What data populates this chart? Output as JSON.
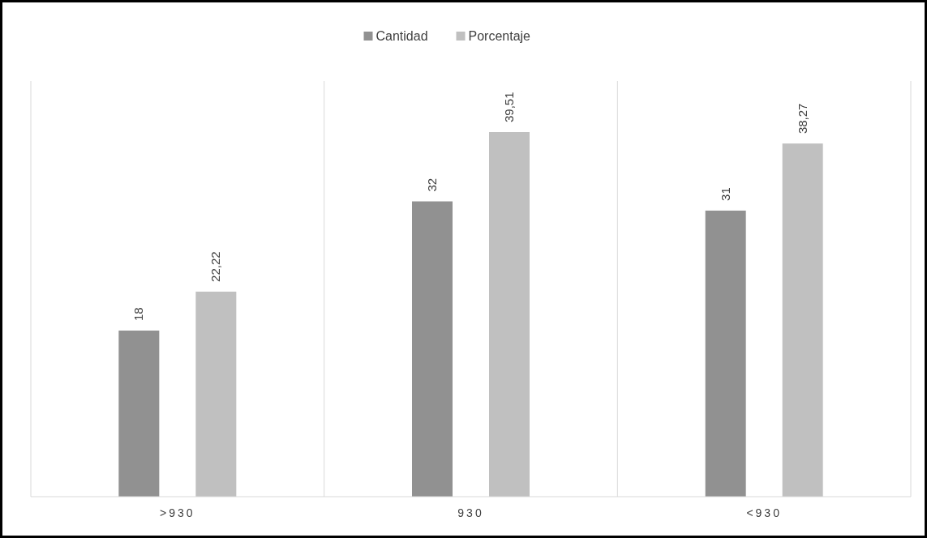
{
  "chart_data": {
    "type": "bar",
    "categories": [
      ">930",
      "930",
      "<930"
    ],
    "series": [
      {
        "name": "Cantidad",
        "color": "#919191",
        "values": [
          18,
          32,
          31
        ],
        "value_labels": [
          "18",
          "32",
          "31"
        ]
      },
      {
        "name": "Porcentaje",
        "color": "#c0c0c0",
        "values": [
          22.22,
          39.51,
          38.27
        ],
        "value_labels": [
          "22,22",
          "39,51",
          "38,27"
        ]
      }
    ],
    "grid": "x",
    "legend": "top"
  }
}
